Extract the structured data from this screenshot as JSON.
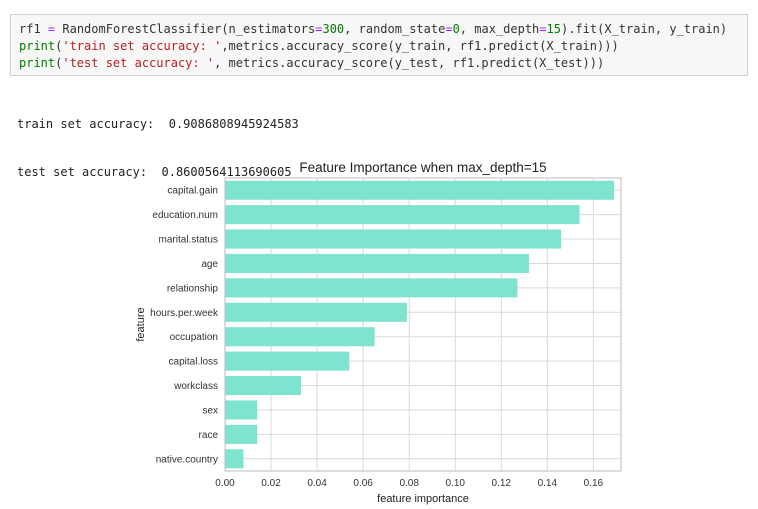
{
  "code_cell": {
    "line1": {
      "name": "rf1",
      "eq": " = ",
      "call_start": "RandomForestClassifier(n_estimators",
      "eq2": "=",
      "n_estimators": "300",
      "mid1": ", random_state",
      "eq3": "=",
      "random_state": "0",
      "mid2": ", max_depth",
      "eq4": "=",
      "max_depth": "15",
      "tail": ").fit(X_train, y_train)"
    },
    "line2": {
      "fn": "print",
      "open": "(",
      "str": "'train set accuracy: '",
      "rest": ",metrics.accuracy_score(y_train, rf1.predict(X_train)))"
    },
    "line3": {
      "fn": "print",
      "open": "(",
      "str": "'test set accuracy: '",
      "rest": ", metrics.accuracy_score(y_test, rf1.predict(X_test)))"
    }
  },
  "output": {
    "train_label": "train set accuracy:",
    "train_value": "0.9086808945924583",
    "test_label": "test set accuracy:",
    "test_value": "0.8600564113690605"
  },
  "colors": {
    "bar": "#7ee3cf",
    "grid": "#d9d9d9",
    "axis": "#bdbdbd"
  },
  "chart_data": {
    "type": "bar",
    "orientation": "horizontal",
    "title": "Feature Importance when max_depth=15",
    "xlabel": "feature importance",
    "ylabel": "feature",
    "categories": [
      "capital.gain",
      "education.num",
      "marital.status",
      "age",
      "relationship",
      "hours.per.week",
      "occupation",
      "capital.loss",
      "workclass",
      "sex",
      "race",
      "native.country"
    ],
    "values": [
      0.169,
      0.154,
      0.146,
      0.132,
      0.127,
      0.079,
      0.065,
      0.054,
      0.033,
      0.014,
      0.014,
      0.008
    ],
    "xlim": [
      0,
      0.172
    ],
    "xticks": [
      "0.00",
      "0.02",
      "0.04",
      "0.06",
      "0.08",
      "0.10",
      "0.12",
      "0.14",
      "0.16"
    ],
    "grid": true
  }
}
